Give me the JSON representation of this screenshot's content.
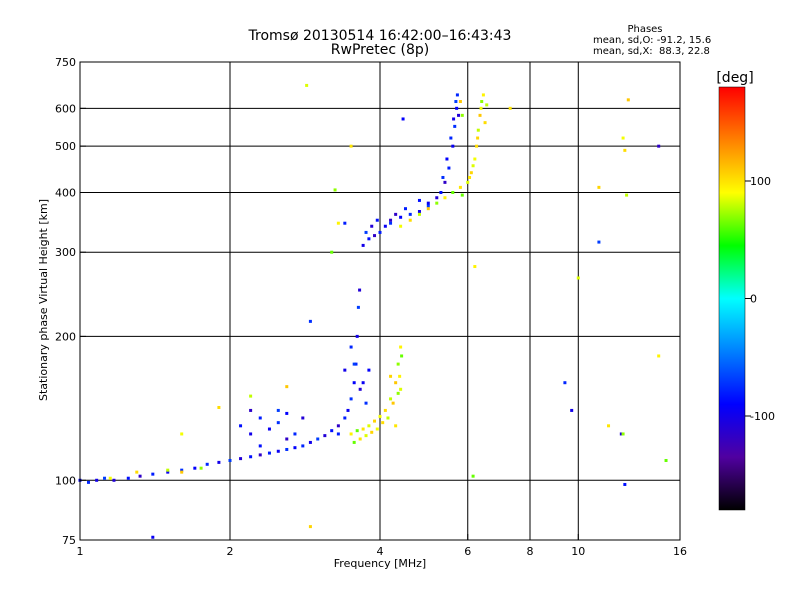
{
  "chart_data": {
    "type": "scatter",
    "title": "Tromsø 20130514 16:42:00–16:43:43",
    "subtitle": "RwPretec (8p)",
    "xlabel": "Frequency [MHz]",
    "ylabel": "Stationary phase Virtual Height [km]",
    "x_scale": "log",
    "y_scale": "log",
    "xlim": [
      1,
      16
    ],
    "ylim": [
      75,
      750
    ],
    "x_ticks": [
      1,
      2,
      4,
      6,
      8,
      10,
      16
    ],
    "x_tick_labels": [
      "1",
      "2",
      "4",
      "6",
      "8",
      "10",
      "16"
    ],
    "x_gridlines": [
      2,
      4,
      6,
      8,
      10
    ],
    "y_ticks": [
      75,
      100,
      200,
      300,
      400,
      500,
      600,
      750
    ],
    "y_tick_labels": [
      "75",
      "100",
      "200",
      "300",
      "400",
      "500",
      "600",
      "750"
    ],
    "y_gridlines": [
      100,
      200,
      300,
      400,
      500,
      600
    ],
    "grid": true,
    "stats": {
      "header": "Phases",
      "line_o": "mean, sd,O: -91.2, 15.6",
      "line_x": "mean, sd,X:  88.3, 22.8"
    },
    "colorbar": {
      "label": "[deg]",
      "range": [
        -180,
        180
      ],
      "ticks": [
        100,
        0,
        -100
      ],
      "tick_labels": [
        "100",
        "0",
        "-100"
      ],
      "colors": [
        "#ff0000",
        "#ff8000",
        "#ffff00",
        "#00ff00",
        "#00ffff",
        "#0080ff",
        "#0000ff",
        "#5000a0",
        "#000000"
      ]
    },
    "series": [
      {
        "mode": "O",
        "phase": -91,
        "points": [
          [
            1.0,
            100
          ],
          [
            1.04,
            99
          ],
          [
            1.08,
            100
          ],
          [
            1.12,
            101
          ],
          [
            1.17,
            100
          ],
          [
            1.25,
            101
          ],
          [
            1.32,
            102
          ],
          [
            1.4,
            103
          ],
          [
            1.5,
            104
          ],
          [
            1.6,
            105
          ],
          [
            1.7,
            106
          ],
          [
            1.8,
            108
          ],
          [
            1.9,
            109
          ],
          [
            2.0,
            110
          ],
          [
            2.1,
            111
          ],
          [
            2.2,
            112
          ],
          [
            2.3,
            113
          ],
          [
            2.4,
            114
          ],
          [
            2.5,
            115
          ],
          [
            2.6,
            116
          ],
          [
            2.7,
            117
          ],
          [
            2.8,
            118
          ],
          [
            2.9,
            120
          ],
          [
            3.0,
            122
          ],
          [
            3.1,
            124
          ],
          [
            3.2,
            127
          ],
          [
            3.3,
            130
          ],
          [
            3.4,
            135
          ],
          [
            3.45,
            140
          ],
          [
            3.5,
            148
          ],
          [
            3.55,
            160
          ],
          [
            3.58,
            175
          ],
          [
            3.6,
            200
          ],
          [
            3.62,
            230
          ],
          [
            3.64,
            250
          ],
          [
            2.1,
            130
          ],
          [
            2.2,
            140
          ],
          [
            2.3,
            135
          ],
          [
            2.4,
            128
          ],
          [
            2.5,
            132
          ],
          [
            2.6,
            138
          ],
          [
            2.7,
            125
          ],
          [
            2.2,
            125
          ],
          [
            2.5,
            140
          ],
          [
            2.8,
            135
          ],
          [
            2.3,
            118
          ],
          [
            2.6,
            122
          ],
          [
            3.3,
            125
          ],
          [
            3.7,
            160
          ],
          [
            3.75,
            145
          ],
          [
            3.8,
            170
          ],
          [
            3.5,
            190
          ],
          [
            3.4,
            170
          ],
          [
            3.55,
            175
          ],
          [
            3.65,
            155
          ],
          [
            3.8,
            320
          ],
          [
            3.9,
            325
          ],
          [
            4.0,
            330
          ],
          [
            4.1,
            340
          ],
          [
            4.2,
            345
          ],
          [
            4.4,
            355
          ],
          [
            4.6,
            360
          ],
          [
            4.8,
            365
          ],
          [
            5.0,
            375
          ],
          [
            5.2,
            390
          ],
          [
            5.3,
            400
          ],
          [
            5.4,
            420
          ],
          [
            5.5,
            450
          ],
          [
            5.6,
            500
          ],
          [
            5.65,
            550
          ],
          [
            5.7,
            600
          ],
          [
            5.72,
            640
          ],
          [
            3.7,
            310
          ],
          [
            3.75,
            330
          ],
          [
            3.85,
            340
          ],
          [
            3.95,
            350
          ],
          [
            4.3,
            360
          ],
          [
            4.5,
            370
          ],
          [
            5.0,
            380
          ],
          [
            5.35,
            430
          ],
          [
            5.45,
            470
          ],
          [
            5.55,
            520
          ],
          [
            5.62,
            570
          ],
          [
            5.68,
            620
          ],
          [
            5.75,
            580
          ],
          [
            4.8,
            385
          ],
          [
            4.2,
            350
          ],
          [
            3.4,
            345
          ],
          [
            1.4,
            76
          ],
          [
            2.9,
            215
          ],
          [
            4.45,
            570
          ],
          [
            9.4,
            160
          ],
          [
            9.7,
            140
          ],
          [
            11.0,
            315
          ],
          [
            12.2,
            125
          ],
          [
            12.4,
            98
          ],
          [
            14.5,
            500
          ]
        ]
      },
      {
        "mode": "X",
        "phase": 88,
        "points": [
          [
            1.15,
            101
          ],
          [
            1.3,
            104
          ],
          [
            1.5,
            105
          ],
          [
            1.6,
            104
          ],
          [
            1.75,
            106
          ],
          [
            3.5,
            125
          ],
          [
            3.6,
            127
          ],
          [
            3.7,
            128
          ],
          [
            3.8,
            130
          ],
          [
            3.9,
            133
          ],
          [
            4.0,
            136
          ],
          [
            4.1,
            140
          ],
          [
            4.2,
            148
          ],
          [
            4.3,
            160
          ],
          [
            4.35,
            175
          ],
          [
            4.4,
            190
          ],
          [
            3.55,
            120
          ],
          [
            3.65,
            122
          ],
          [
            3.75,
            124
          ],
          [
            3.85,
            126
          ],
          [
            3.95,
            128
          ],
          [
            4.05,
            132
          ],
          [
            4.15,
            135
          ],
          [
            4.25,
            145
          ],
          [
            4.35,
            152
          ],
          [
            4.38,
            165
          ],
          [
            4.42,
            182
          ],
          [
            4.3,
            130
          ],
          [
            4.4,
            155
          ],
          [
            4.2,
            165
          ],
          [
            4.4,
            340
          ],
          [
            4.6,
            350
          ],
          [
            4.8,
            360
          ],
          [
            5.0,
            370
          ],
          [
            5.2,
            380
          ],
          [
            5.4,
            390
          ],
          [
            5.6,
            400
          ],
          [
            5.8,
            410
          ],
          [
            6.0,
            420
          ],
          [
            6.1,
            440
          ],
          [
            6.2,
            470
          ],
          [
            6.25,
            500
          ],
          [
            6.3,
            540
          ],
          [
            6.35,
            580
          ],
          [
            6.4,
            620
          ],
          [
            6.45,
            640
          ],
          [
            5.85,
            395
          ],
          [
            6.05,
            430
          ],
          [
            6.15,
            455
          ],
          [
            6.28,
            520
          ],
          [
            6.38,
            600
          ],
          [
            6.5,
            560
          ],
          [
            6.55,
            610
          ],
          [
            5.8,
            620
          ],
          [
            5.85,
            580
          ],
          [
            3.3,
            345
          ],
          [
            3.2,
            300
          ],
          [
            3.5,
            500
          ],
          [
            2.85,
            670
          ],
          [
            2.9,
            80
          ],
          [
            1.6,
            125
          ],
          [
            1.9,
            142
          ],
          [
            2.2,
            150
          ],
          [
            2.6,
            157
          ],
          [
            3.25,
            405
          ],
          [
            6.2,
            280
          ],
          [
            6.15,
            102
          ],
          [
            7.3,
            600
          ],
          [
            10.0,
            265
          ],
          [
            11.0,
            410
          ],
          [
            12.3,
            520
          ],
          [
            12.4,
            490
          ],
          [
            12.5,
            395
          ],
          [
            12.6,
            625
          ],
          [
            12.3,
            125
          ],
          [
            14.5,
            182
          ],
          [
            15.0,
            110
          ],
          [
            11.5,
            130
          ]
        ]
      }
    ]
  }
}
